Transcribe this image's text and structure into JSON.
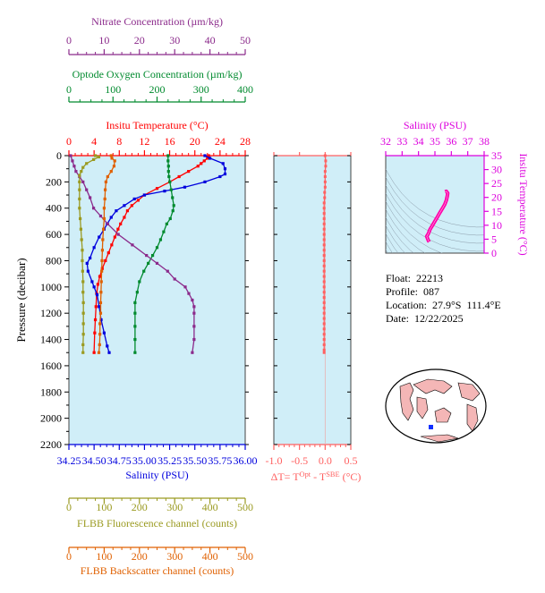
{
  "colors": {
    "nitrate": "#8b2a8b",
    "oxygen": "#008a2e",
    "temperature": "#ff0000",
    "salinity": "#0000dd",
    "fluorescence": "#9a9a20",
    "backscatter": "#e06000",
    "delta": "#ff6060",
    "ts_axis": "#dd00dd",
    "panel_bg": "#d0eef8"
  },
  "info": {
    "float_label": "Float:",
    "float_value": "22213",
    "profile_label": "Profile:",
    "profile_value": "087",
    "location_label": "Location:",
    "location_value": "27.9°S  111.4°E",
    "date_label": "Date:",
    "date_value": "12/22/2025"
  },
  "chart_data": [
    {
      "type": "line",
      "title": "",
      "ylabel": "Pressure (decibar)",
      "ylim": [
        2200,
        0
      ],
      "yticks": [
        0,
        200,
        400,
        600,
        800,
        1000,
        1200,
        1400,
        1600,
        1800,
        2000,
        2200
      ],
      "axes": {
        "nitrate": {
          "label": "Nitrate Concentration (µm/kg)",
          "range": [
            0,
            50
          ],
          "ticks": [
            0,
            10,
            20,
            30,
            40,
            50
          ]
        },
        "oxygen": {
          "label": "Optode Oxygen Concentration (µm/kg)",
          "range": [
            0,
            400
          ],
          "ticks": [
            0,
            100,
            200,
            300,
            400
          ]
        },
        "temperature": {
          "label": "Insitu Temperature (°C)",
          "range": [
            0,
            28
          ],
          "ticks": [
            0,
            4,
            8,
            12,
            16,
            20,
            24,
            28
          ]
        },
        "salinity": {
          "label": "Salinity (PSU)",
          "range": [
            34.25,
            36.0
          ],
          "ticks": [
            "34.25",
            "34.50",
            "34.75",
            "35.00",
            "35.25",
            "35.50",
            "35.75",
            "36.00"
          ]
        },
        "fluorescence": {
          "label": "FLBB Fluorescence channel (counts)",
          "range": [
            0,
            500
          ],
          "ticks": [
            0,
            100,
            200,
            300,
            400,
            500
          ]
        },
        "backscatter": {
          "label": "FLBB Backscatter channel (counts)",
          "range": [
            0,
            500
          ],
          "ticks": [
            0,
            100,
            200,
            300,
            400,
            500
          ]
        }
      },
      "series": [
        {
          "key": "temperature",
          "axis": "temperature",
          "points": [
            [
              22.2,
              0
            ],
            [
              22,
              20
            ],
            [
              21.5,
              40
            ],
            [
              21,
              60
            ],
            [
              20.5,
              80
            ],
            [
              19,
              120
            ],
            [
              17.5,
              160
            ],
            [
              16,
              200
            ],
            [
              14,
              250
            ],
            [
              12,
              300
            ],
            [
              11,
              340
            ],
            [
              10,
              380
            ],
            [
              9.3,
              420
            ],
            [
              8.8,
              470
            ],
            [
              8.2,
              520
            ],
            [
              7.8,
              560
            ],
            [
              7.3,
              620
            ],
            [
              6.8,
              680
            ],
            [
              6.3,
              740
            ],
            [
              5.8,
              800
            ],
            [
              5.3,
              860
            ],
            [
              4.9,
              920
            ],
            [
              4.6,
              980
            ],
            [
              4.4,
              1050
            ],
            [
              4.3,
              1150
            ],
            [
              4.2,
              1250
            ],
            [
              4.1,
              1350
            ],
            [
              4,
              1500
            ]
          ]
        },
        {
          "key": "salinity",
          "axis": "salinity",
          "points": [
            [
              35.6,
              0
            ],
            [
              35.65,
              20
            ],
            [
              35.78,
              60
            ],
            [
              35.8,
              100
            ],
            [
              35.8,
              140
            ],
            [
              35.75,
              160
            ],
            [
              35.6,
              200
            ],
            [
              35.4,
              240
            ],
            [
              35.2,
              270
            ],
            [
              35,
              300
            ],
            [
              34.9,
              330
            ],
            [
              34.8,
              380
            ],
            [
              34.72,
              420
            ],
            [
              34.67,
              470
            ],
            [
              34.63,
              520
            ],
            [
              34.6,
              560
            ],
            [
              34.55,
              620
            ],
            [
              34.5,
              700
            ],
            [
              34.46,
              780
            ],
            [
              34.43,
              820
            ],
            [
              34.44,
              880
            ],
            [
              34.48,
              960
            ],
            [
              34.5,
              1000
            ],
            [
              34.53,
              1060
            ],
            [
              34.55,
              1150
            ],
            [
              34.57,
              1250
            ],
            [
              34.6,
              1350
            ],
            [
              34.63,
              1450
            ],
            [
              34.65,
              1500
            ]
          ]
        },
        {
          "key": "oxygen",
          "axis": "oxygen",
          "points": [
            [
              225,
              0
            ],
            [
              225,
              40
            ],
            [
              226,
              80
            ],
            [
              226,
              120
            ],
            [
              227,
              160
            ],
            [
              229,
              200
            ],
            [
              232,
              260
            ],
            [
              235,
              320
            ],
            [
              238,
              380
            ],
            [
              236,
              420
            ],
            [
              230,
              480
            ],
            [
              222,
              520
            ],
            [
              215,
              580
            ],
            [
              208,
              640
            ],
            [
              200,
              700
            ],
            [
              190,
              760
            ],
            [
              180,
              820
            ],
            [
              170,
              880
            ],
            [
              160,
              960
            ],
            [
              155,
              1040
            ],
            [
              150,
              1120
            ],
            [
              150,
              1200
            ],
            [
              150,
              1300
            ],
            [
              150,
              1400
            ],
            [
              150,
              1500
            ]
          ]
        },
        {
          "key": "nitrate",
          "axis": "nitrate",
          "points": [
            [
              0.5,
              0
            ],
            [
              1,
              40
            ],
            [
              1.5,
              80
            ],
            [
              2,
              120
            ],
            [
              3,
              160
            ],
            [
              4,
              200
            ],
            [
              5,
              260
            ],
            [
              6,
              320
            ],
            [
              7,
              400
            ],
            [
              9,
              460
            ],
            [
              11,
              520
            ],
            [
              14,
              600
            ],
            [
              18,
              680
            ],
            [
              22,
              760
            ],
            [
              25,
              820
            ],
            [
              28,
              880
            ],
            [
              30,
              940
            ],
            [
              33,
              1000
            ],
            [
              34,
              1050
            ],
            [
              35,
              1100
            ],
            [
              35.5,
              1150
            ],
            [
              35.5,
              1200
            ],
            [
              35.5,
              1300
            ],
            [
              35.5,
              1400
            ],
            [
              35,
              1500
            ]
          ]
        },
        {
          "key": "fluorescence",
          "axis": "fluorescence",
          "points": [
            [
              75,
              0
            ],
            [
              85,
              10
            ],
            [
              70,
              30
            ],
            [
              50,
              60
            ],
            [
              40,
              90
            ],
            [
              35,
              120
            ],
            [
              30,
              150
            ],
            [
              30,
              200
            ],
            [
              30,
              260
            ],
            [
              30,
              330
            ],
            [
              30,
              400
            ],
            [
              32,
              480
            ],
            [
              34,
              560
            ],
            [
              36,
              640
            ],
            [
              38,
              720
            ],
            [
              38,
              800
            ],
            [
              39,
              880
            ],
            [
              40,
              960
            ],
            [
              40,
              1040
            ],
            [
              41,
              1120
            ],
            [
              41,
              1200
            ],
            [
              41,
              1280
            ],
            [
              41,
              1360
            ],
            [
              40,
              1440
            ],
            [
              40,
              1500
            ]
          ]
        },
        {
          "key": "backscatter",
          "axis": "backscatter",
          "points": [
            [
              120,
              0
            ],
            [
              122,
              20
            ],
            [
              130,
              40
            ],
            [
              128,
              80
            ],
            [
              120,
              120
            ],
            [
              110,
              160
            ],
            [
              105,
              200
            ],
            [
              103,
              260
            ],
            [
              102,
              330
            ],
            [
              100,
              400
            ],
            [
              100,
              480
            ],
            [
              98,
              560
            ],
            [
              96,
              640
            ],
            [
              95,
              720
            ],
            [
              94,
              800
            ],
            [
              93,
              880
            ],
            [
              92,
              960
            ],
            [
              91,
              1040
            ],
            [
              90,
              1120
            ],
            [
              90,
              1200
            ],
            [
              88,
              1280
            ],
            [
              88,
              1360
            ],
            [
              87,
              1440
            ],
            [
              85,
              1500
            ]
          ]
        }
      ]
    },
    {
      "type": "line",
      "title": "",
      "xlabel": "ΔT= T^Opt - T^SBE (°C)",
      "xlim": [
        -1.0,
        0.5
      ],
      "xticks": [
        "-1.0",
        "-0.5",
        "0.0",
        "0.5"
      ],
      "ylim": [
        2200,
        0
      ],
      "series": [
        {
          "key": "delta",
          "points": [
            [
              0.0,
              0
            ],
            [
              0.01,
              40
            ],
            [
              0.01,
              80
            ],
            [
              0.0,
              120
            ],
            [
              0.0,
              160
            ],
            [
              0.0,
              200
            ],
            [
              0.0,
              240
            ],
            [
              -0.01,
              280
            ],
            [
              -0.01,
              320
            ],
            [
              -0.02,
              360
            ],
            [
              -0.02,
              400
            ],
            [
              -0.02,
              440
            ],
            [
              -0.02,
              480
            ],
            [
              -0.02,
              520
            ],
            [
              -0.02,
              560
            ],
            [
              -0.02,
              600
            ],
            [
              -0.02,
              640
            ],
            [
              -0.02,
              680
            ],
            [
              -0.02,
              720
            ],
            [
              -0.02,
              760
            ],
            [
              -0.02,
              800
            ],
            [
              -0.02,
              840
            ],
            [
              -0.02,
              880
            ],
            [
              -0.02,
              920
            ],
            [
              -0.02,
              960
            ],
            [
              -0.02,
              1000
            ],
            [
              -0.02,
              1040
            ],
            [
              -0.02,
              1080
            ],
            [
              -0.02,
              1120
            ],
            [
              -0.02,
              1160
            ],
            [
              -0.02,
              1200
            ],
            [
              -0.02,
              1240
            ],
            [
              -0.02,
              1280
            ],
            [
              -0.02,
              1320
            ],
            [
              -0.02,
              1360
            ],
            [
              -0.02,
              1400
            ],
            [
              -0.02,
              1440
            ],
            [
              -0.02,
              1480
            ],
            [
              -0.02,
              1500
            ]
          ]
        }
      ]
    },
    {
      "type": "scatter",
      "title": "",
      "xlabel": "Salinity (PSU)",
      "ylabel": "Insitu Temperature (°C)",
      "xlim": [
        32,
        38
      ],
      "ylim": [
        0,
        35
      ],
      "xticks": [
        32,
        33,
        34,
        35,
        36,
        37,
        38
      ],
      "yticks": [
        0,
        5,
        10,
        15,
        20,
        25,
        30,
        35
      ],
      "series": [
        {
          "key": "ts",
          "points": [
            [
              34.65,
              4
            ],
            [
              34.6,
              4.5
            ],
            [
              34.55,
              5.3
            ],
            [
              34.5,
              6
            ],
            [
              34.6,
              7
            ],
            [
              34.7,
              8.5
            ],
            [
              34.85,
              10
            ],
            [
              35,
              11.5
            ],
            [
              35.15,
              13
            ],
            [
              35.3,
              14.5
            ],
            [
              35.45,
              16
            ],
            [
              35.6,
              17.5
            ],
            [
              35.7,
              19
            ],
            [
              35.75,
              20.5
            ],
            [
              35.78,
              21.5
            ],
            [
              35.7,
              22.2
            ],
            [
              35.62,
              22
            ]
          ]
        }
      ]
    }
  ]
}
